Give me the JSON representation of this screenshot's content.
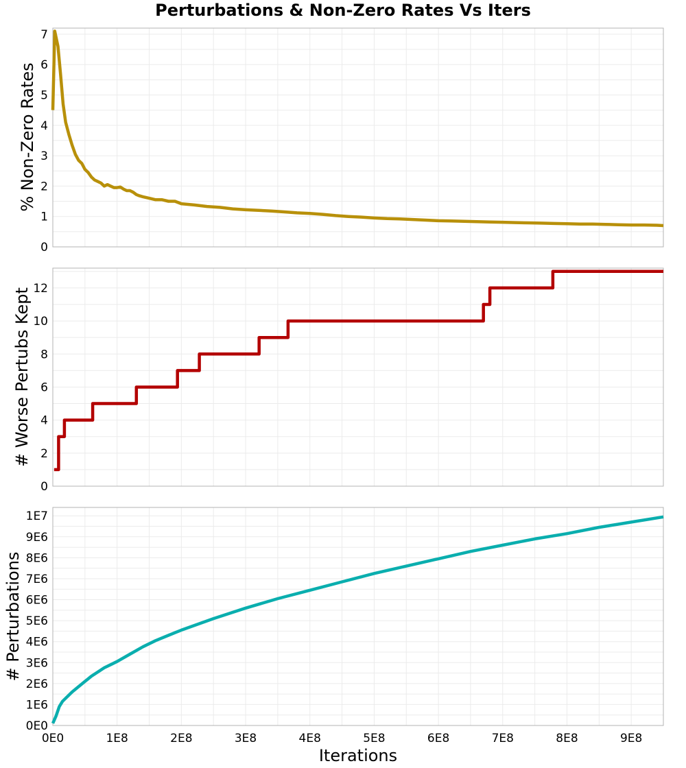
{
  "chart_data": {
    "title": "Perturbations & Non-Zero Rates Vs Iters",
    "xlabel": "Iterations",
    "x_ticks": [
      "0E0",
      "1E8",
      "2E8",
      "3E8",
      "4E8",
      "5E8",
      "6E8",
      "7E8",
      "8E8",
      "9E8"
    ],
    "xlim": [
      0,
      950000000
    ],
    "grid": true,
    "panels": [
      {
        "type": "line",
        "ylabel": "% Non-Zero Rates",
        "ylim": [
          0,
          7.2
        ],
        "y_ticks": [
          "0",
          "1",
          "2",
          "3",
          "4",
          "5",
          "6",
          "7"
        ],
        "y_tick_values": [
          0,
          1,
          2,
          3,
          4,
          5,
          6,
          7
        ],
        "color": "#b8900a",
        "x": [
          0,
          3000000,
          8000000,
          12000000,
          16000000,
          20000000,
          25000000,
          30000000,
          35000000,
          40000000,
          45000000,
          50000000,
          55000000,
          60000000,
          65000000,
          70000000,
          75000000,
          80000000,
          85000000,
          90000000,
          95000000,
          100000000,
          105000000,
          110000000,
          115000000,
          120000000,
          125000000,
          130000000,
          135000000,
          140000000,
          150000000,
          160000000,
          170000000,
          180000000,
          190000000,
          200000000,
          220000000,
          240000000,
          260000000,
          280000000,
          300000000,
          320000000,
          340000000,
          360000000,
          380000000,
          400000000,
          420000000,
          440000000,
          460000000,
          480000000,
          500000000,
          520000000,
          540000000,
          560000000,
          580000000,
          600000000,
          620000000,
          640000000,
          660000000,
          680000000,
          700000000,
          720000000,
          740000000,
          760000000,
          780000000,
          800000000,
          820000000,
          840000000,
          860000000,
          880000000,
          900000000,
          920000000,
          940000000,
          950000000
        ],
        "values": [
          4.5,
          7.1,
          6.6,
          5.7,
          4.7,
          4.1,
          3.7,
          3.35,
          3.05,
          2.85,
          2.75,
          2.55,
          2.45,
          2.3,
          2.2,
          2.15,
          2.1,
          2.0,
          2.05,
          2.0,
          1.95,
          1.95,
          1.97,
          1.9,
          1.85,
          1.85,
          1.8,
          1.72,
          1.68,
          1.65,
          1.6,
          1.55,
          1.55,
          1.5,
          1.5,
          1.42,
          1.38,
          1.33,
          1.3,
          1.25,
          1.22,
          1.2,
          1.18,
          1.15,
          1.12,
          1.1,
          1.07,
          1.03,
          1.0,
          0.98,
          0.95,
          0.93,
          0.92,
          0.9,
          0.88,
          0.86,
          0.85,
          0.84,
          0.83,
          0.82,
          0.81,
          0.8,
          0.79,
          0.78,
          0.77,
          0.76,
          0.75,
          0.75,
          0.74,
          0.73,
          0.72,
          0.72,
          0.71,
          0.7
        ]
      },
      {
        "type": "line",
        "step": true,
        "ylabel": "# Worse Pertubs Kept",
        "ylim": [
          0,
          13.2
        ],
        "y_ticks": [
          "0",
          "2",
          "4",
          "6",
          "8",
          "10",
          "12"
        ],
        "y_tick_values": [
          0,
          2,
          4,
          6,
          8,
          10,
          12
        ],
        "color": "#b30000",
        "x": [
          2000000,
          9000000,
          18000000,
          62000000,
          130000000,
          194000000,
          228000000,
          321000000,
          366000000,
          670000000,
          680000000,
          778000000,
          950000000
        ],
        "values": [
          1,
          3,
          4,
          5,
          6,
          7,
          8,
          9,
          10,
          11,
          12,
          13,
          13
        ]
      },
      {
        "type": "line",
        "ylabel": "# Perturbations",
        "ylim": [
          0,
          10400000
        ],
        "y_ticks": [
          "0E0",
          "1E6",
          "2E6",
          "3E6",
          "4E6",
          "5E6",
          "6E6",
          "7E6",
          "8E6",
          "9E6",
          "1E7"
        ],
        "y_tick_values": [
          0,
          1000000,
          2000000,
          3000000,
          4000000,
          5000000,
          6000000,
          7000000,
          8000000,
          9000000,
          10000000
        ],
        "color": "#0aaeae",
        "x": [
          0,
          5000000,
          10000000,
          15000000,
          20000000,
          30000000,
          40000000,
          50000000,
          60000000,
          70000000,
          80000000,
          90000000,
          100000000,
          120000000,
          140000000,
          160000000,
          180000000,
          200000000,
          250000000,
          300000000,
          350000000,
          400000000,
          450000000,
          500000000,
          550000000,
          600000000,
          650000000,
          700000000,
          750000000,
          800000000,
          850000000,
          900000000,
          950000000
        ],
        "values": [
          100000,
          450000,
          900000,
          1150000,
          1300000,
          1600000,
          1850000,
          2100000,
          2350000,
          2550000,
          2750000,
          2900000,
          3050000,
          3400000,
          3750000,
          4050000,
          4300000,
          4550000,
          5100000,
          5600000,
          6050000,
          6450000,
          6850000,
          7250000,
          7600000,
          7950000,
          8300000,
          8600000,
          8900000,
          9150000,
          9450000,
          9700000,
          9950000
        ]
      }
    ]
  }
}
